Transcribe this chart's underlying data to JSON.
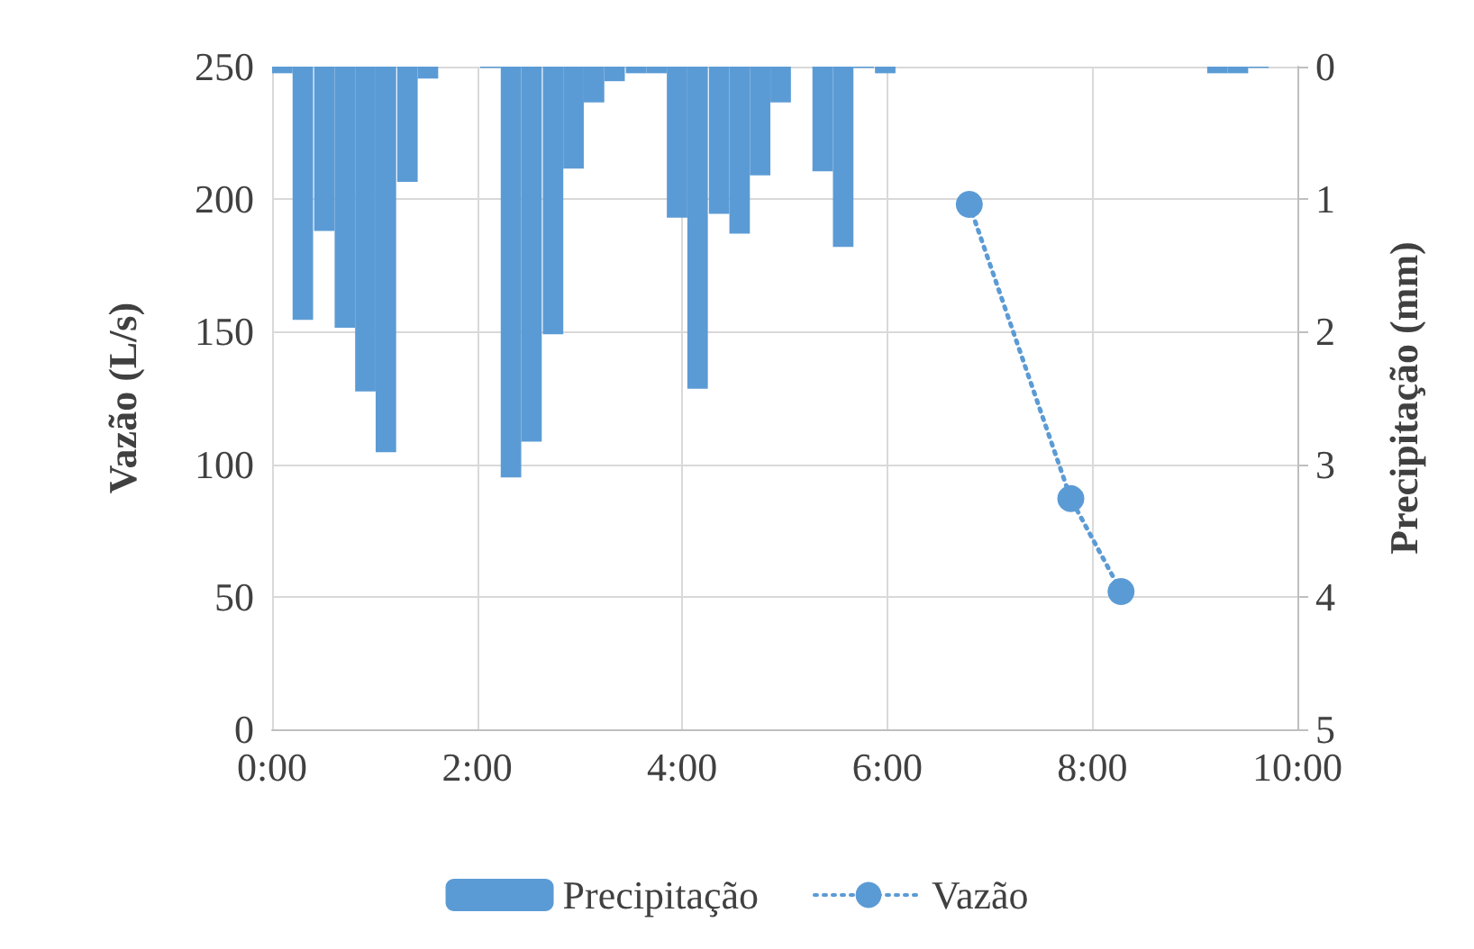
{
  "chart_data": {
    "type": "bar",
    "ylabel": "Vazão (L/s)",
    "y2label": "Precipitação (mm)",
    "xlim": [
      0,
      10
    ],
    "xticks": [
      {
        "value": 0,
        "label": "0:00"
      },
      {
        "value": 2,
        "label": "2:00"
      },
      {
        "value": 4,
        "label": "4:00"
      },
      {
        "value": 6,
        "label": "6:00"
      },
      {
        "value": 8,
        "label": "8:00"
      },
      {
        "value": 10,
        "label": "10:00"
      }
    ],
    "ylim": [
      0,
      250
    ],
    "yticks": [
      0,
      50,
      100,
      150,
      200,
      250
    ],
    "y2lim": [
      5,
      0
    ],
    "y2ticks": [
      0,
      1,
      2,
      3,
      4,
      5
    ],
    "series": [
      {
        "name": "Precipitação",
        "axis": "y2",
        "color": "#5b9bd5",
        "x": [
          0.1,
          0.3,
          0.51,
          0.71,
          0.91,
          1.11,
          1.32,
          1.52,
          2.13,
          2.33,
          2.53,
          2.74,
          2.94,
          3.14,
          3.34,
          3.55,
          3.75,
          3.95,
          4.15,
          4.36,
          4.56,
          4.76,
          4.96,
          5.37,
          5.57,
          5.77,
          5.98,
          9.22,
          9.42,
          9.62
        ],
        "values": [
          0.05,
          1.91,
          1.24,
          1.97,
          2.45,
          2.91,
          0.87,
          0.09,
          0.01,
          3.1,
          2.83,
          2.02,
          0.77,
          0.27,
          0.11,
          0.05,
          0.05,
          1.14,
          2.43,
          1.11,
          1.26,
          0.82,
          0.27,
          0.79,
          1.36,
          0.01,
          0.05,
          0.05,
          0.05,
          0.01
        ]
      },
      {
        "name": "Vazão",
        "type": "line",
        "color": "#5b9bd5",
        "x": [
          6.8,
          7.79,
          8.28
        ],
        "values": [
          198,
          87,
          52
        ]
      }
    ],
    "marker": "circle",
    "line_style": "dotted",
    "grid": true,
    "legend": "bottom"
  }
}
